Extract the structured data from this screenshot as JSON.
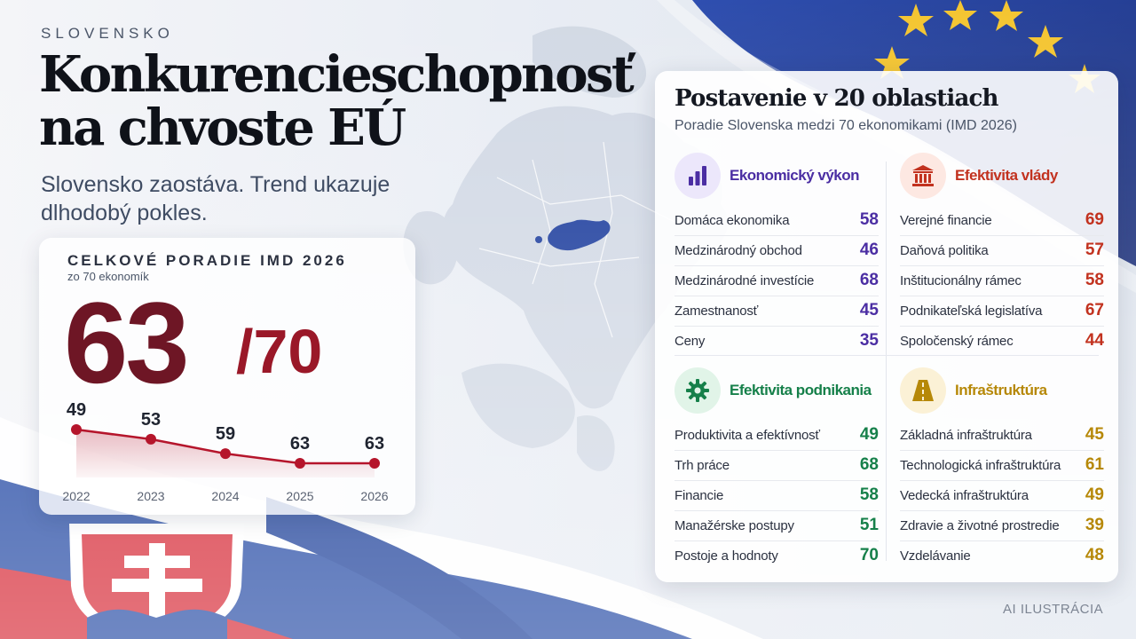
{
  "header": {
    "kicker": "SLOVENSKO",
    "title": "Konkurencieschopnosť na chvoste EÚ",
    "subtitle": "Slovensko zaostáva. Trend ukazuje dlhodobý pokles."
  },
  "overall": {
    "label": "CELKOVÉ PORADIE IMD 2026",
    "sub": "zo 70 ekonomík",
    "rank": "63",
    "total": "/70",
    "rank_color": "#6e1625",
    "accent_color": "#9a1828"
  },
  "chart_data": {
    "type": "line",
    "x": [
      "2022",
      "2023",
      "2024",
      "2025",
      "2026"
    ],
    "values": [
      49,
      53,
      59,
      63,
      63
    ],
    "title": "",
    "xlabel": "",
    "ylabel": "",
    "y_inverted": true,
    "ylim": [
      49,
      63
    ],
    "grid": false,
    "color": "#b5152b"
  },
  "panel": {
    "title": "Postavenie v 20 oblastiach",
    "sub": "Poradie Slovenska medzi 70 ekonomikami (IMD 2026)",
    "sections": [
      {
        "title": "Ekonomický výkon",
        "icon": "bar-chart-icon",
        "color": "#4b2ea3",
        "icon_bg": "#ece7fb",
        "rows": [
          {
            "label": "Domáca ekonomika",
            "value": "58"
          },
          {
            "label": "Medzinárodný obchod",
            "value": "46"
          },
          {
            "label": "Medzinárodné investície",
            "value": "68"
          },
          {
            "label": "Zamestnanosť",
            "value": "45"
          },
          {
            "label": "Ceny",
            "value": "35"
          }
        ]
      },
      {
        "title": "Efektivita vlády",
        "icon": "government-building-icon",
        "color": "#c2321f",
        "icon_bg": "#fde8e2",
        "rows": [
          {
            "label": "Verejné financie",
            "value": "69"
          },
          {
            "label": "Daňová politika",
            "value": "57"
          },
          {
            "label": "Inštitucionálny rámec",
            "value": "58"
          },
          {
            "label": "Podnikateľská legislatíva",
            "value": "67"
          },
          {
            "label": "Spoločenský rámec",
            "value": "44"
          }
        ]
      },
      {
        "title": "Efektivita podnikania",
        "icon": "gear-icon",
        "color": "#16804a",
        "icon_bg": "#e1f4e8",
        "rows": [
          {
            "label": "Produktivita a efektívnosť",
            "value": "49"
          },
          {
            "label": "Trh práce",
            "value": "68"
          },
          {
            "label": "Financie",
            "value": "58"
          },
          {
            "label": "Manažérske postupy",
            "value": "51"
          },
          {
            "label": "Postoje a hodnoty",
            "value": "70"
          }
        ]
      },
      {
        "title": "Infraštruktúra",
        "icon": "road-icon",
        "color": "#b68808",
        "icon_bg": "#fbf1d6",
        "rows": [
          {
            "label": "Základná infraštruktúra",
            "value": "45"
          },
          {
            "label": "Technologická infraštruktúra",
            "value": "61"
          },
          {
            "label": "Vedecká infraštruktúra",
            "value": "49"
          },
          {
            "label": "Zdravie a životné prostredie",
            "value": "39"
          },
          {
            "label": "Vzdelávanie",
            "value": "48"
          }
        ]
      }
    ]
  },
  "footer": {
    "note": "AI ILUSTRÁCIA"
  }
}
